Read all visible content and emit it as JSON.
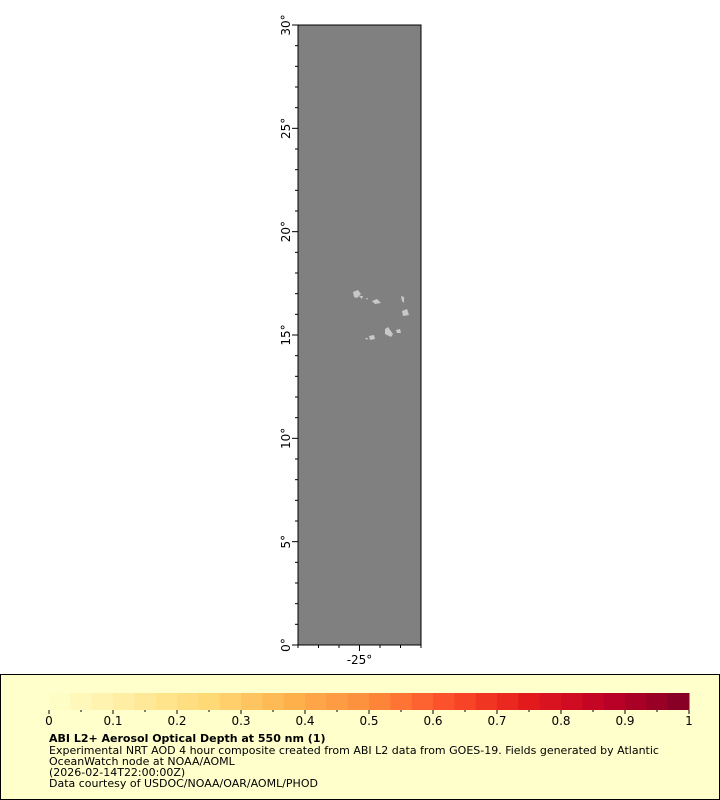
{
  "map": {
    "lat_range": [
      0,
      30
    ],
    "lon_range": [
      -28,
      -22
    ],
    "lat_labels": [
      "0°",
      "5°",
      "10°",
      "15°",
      "20°",
      "25°",
      "30°"
    ],
    "lon_labels": [
      "-25°"
    ],
    "ocean_color": "#808080",
    "land_color": "#c8c8c8",
    "frame_color": "#000000"
  },
  "legend": {
    "colorbar_ticks": [
      "0",
      "0.1",
      "0.2",
      "0.3",
      "0.4",
      "0.5",
      "0.6",
      "0.7",
      "0.8",
      "0.9",
      "1"
    ],
    "colorbar_colors": [
      "#ffffcc",
      "#ffeda0",
      "#fed976",
      "#feb24c",
      "#fd8d3c",
      "#fc4e2a",
      "#e31a1c",
      "#bd0026",
      "#800026"
    ],
    "title": "ABI L2+ Aerosol Optical Depth at 550 nm (1)",
    "line1": "Experimental NRT AOD 4 hour composite created from ABI L2 data from GOES-19. Fields generated by Atlantic",
    "line2": "OceanWatch node at NOAA/AOML",
    "time": "(2026-02-14T22:00:00Z)",
    "credit": "Data courtesy of USDOC/NOAA/OAR/AOML/PHOD",
    "background": "#ffffcc"
  }
}
